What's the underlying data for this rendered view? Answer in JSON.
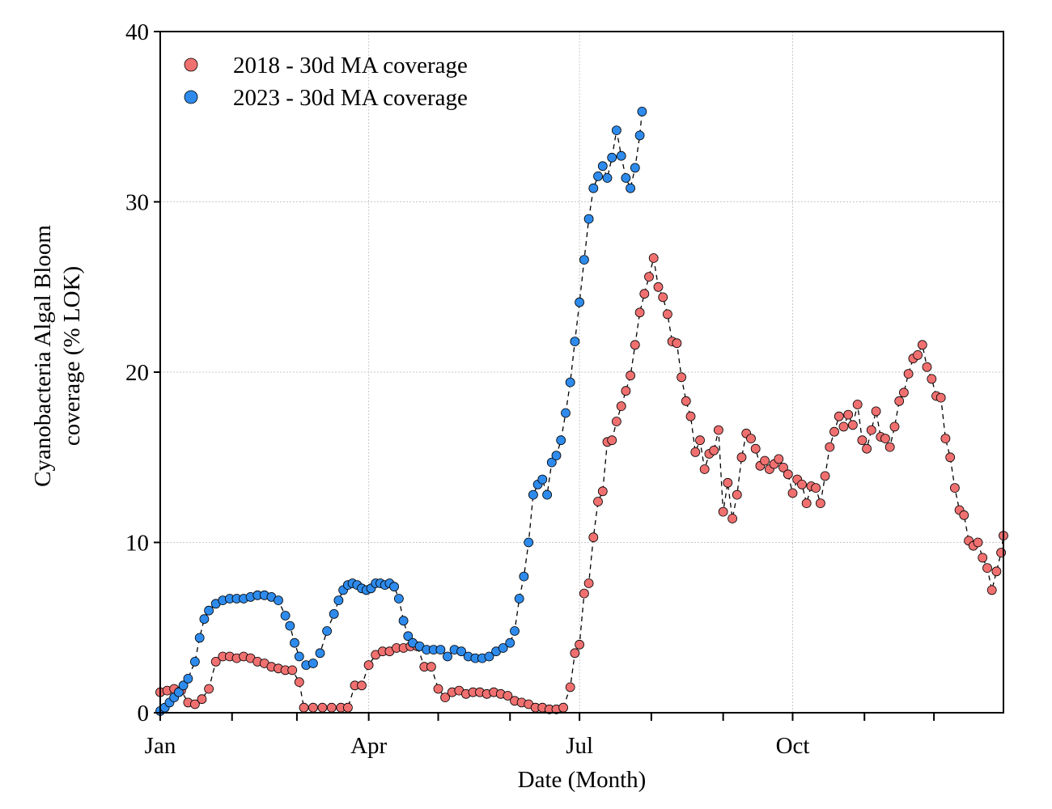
{
  "chart_data": {
    "type": "scatter",
    "title": "",
    "xlabel": "Date (Month)",
    "ylabel": "Cyanobacteria Algal Bloom\ncoverage (% LOK)",
    "ylim": [
      0,
      40
    ],
    "xlim": [
      "Jan 1",
      "Dec 31"
    ],
    "yticks": [
      "0",
      "10",
      "20",
      "30",
      "40"
    ],
    "xticks": [
      "Jan",
      "Apr",
      "Jul",
      "Oct"
    ],
    "grid": true,
    "legend_position": "top-left",
    "series": [
      {
        "name": "2018 - 30d MA coverage",
        "color": "#f07070",
        "points": [
          [
            "Jan 1",
            1.2
          ],
          [
            "Jan 4",
            1.3
          ],
          [
            "Jan 7",
            1.4
          ],
          [
            "Jan 10",
            1.3
          ],
          [
            "Jan 13",
            0.6
          ],
          [
            "Jan 16",
            0.5
          ],
          [
            "Jan 19",
            0.8
          ],
          [
            "Jan 22",
            1.4
          ],
          [
            "Jan 25",
            3.0
          ],
          [
            "Jan 28",
            3.3
          ],
          [
            "Jan 31",
            3.3
          ],
          [
            "Feb 3",
            3.2
          ],
          [
            "Feb 6",
            3.3
          ],
          [
            "Feb 9",
            3.2
          ],
          [
            "Feb 12",
            3.0
          ],
          [
            "Feb 15",
            2.9
          ],
          [
            "Feb 18",
            2.7
          ],
          [
            "Feb 21",
            2.6
          ],
          [
            "Feb 24",
            2.5
          ],
          [
            "Feb 27",
            2.5
          ],
          [
            "Mar 2",
            1.8
          ],
          [
            "Mar 4",
            0.3
          ],
          [
            "Mar 8",
            0.3
          ],
          [
            "Mar 12",
            0.3
          ],
          [
            "Mar 16",
            0.3
          ],
          [
            "Mar 20",
            0.3
          ],
          [
            "Mar 23",
            0.3
          ],
          [
            "Mar 26",
            1.6
          ],
          [
            "Mar 29",
            1.6
          ],
          [
            "Apr 1",
            2.8
          ],
          [
            "Apr 4",
            3.4
          ],
          [
            "Apr 7",
            3.6
          ],
          [
            "Apr 10",
            3.6
          ],
          [
            "Apr 13",
            3.8
          ],
          [
            "Apr 16",
            3.8
          ],
          [
            "Apr 19",
            3.9
          ],
          [
            "Apr 22",
            3.9
          ],
          [
            "Apr 25",
            2.7
          ],
          [
            "Apr 28",
            2.7
          ],
          [
            "May 1",
            1.4
          ],
          [
            "May 4",
            0.9
          ],
          [
            "May 7",
            1.2
          ],
          [
            "May 10",
            1.3
          ],
          [
            "May 13",
            1.1
          ],
          [
            "May 16",
            1.2
          ],
          [
            "May 19",
            1.2
          ],
          [
            "May 22",
            1.1
          ],
          [
            "May 25",
            1.2
          ],
          [
            "May 28",
            1.1
          ],
          [
            "May 31",
            1.0
          ],
          [
            "Jun 3",
            0.7
          ],
          [
            "Jun 6",
            0.6
          ],
          [
            "Jun 9",
            0.5
          ],
          [
            "Jun 12",
            0.3
          ],
          [
            "Jun 15",
            0.3
          ],
          [
            "Jun 18",
            0.2
          ],
          [
            "Jun 21",
            0.2
          ],
          [
            "Jun 24",
            0.3
          ],
          [
            "Jun 27",
            1.5
          ],
          [
            "Jun 29",
            3.5
          ],
          [
            "Jul 1",
            4.0
          ],
          [
            "Jul 3",
            7.0
          ],
          [
            "Jul 5",
            7.6
          ],
          [
            "Jul 7",
            10.3
          ],
          [
            "Jul 9",
            12.4
          ],
          [
            "Jul 11",
            13.0
          ],
          [
            "Jul 13",
            15.9
          ],
          [
            "Jul 15",
            16.0
          ],
          [
            "Jul 17",
            17.1
          ],
          [
            "Jul 19",
            18.0
          ],
          [
            "Jul 21",
            18.9
          ],
          [
            "Jul 23",
            19.8
          ],
          [
            "Jul 25",
            21.6
          ],
          [
            "Jul 27",
            23.5
          ],
          [
            "Jul 29",
            24.6
          ],
          [
            "Jul 31",
            25.6
          ],
          [
            "Aug 2",
            26.7
          ],
          [
            "Aug 4",
            25.0
          ],
          [
            "Aug 6",
            24.4
          ],
          [
            "Aug 8",
            23.4
          ],
          [
            "Aug 10",
            21.8
          ],
          [
            "Aug 12",
            21.7
          ],
          [
            "Aug 14",
            19.7
          ],
          [
            "Aug 16",
            18.3
          ],
          [
            "Aug 18",
            17.4
          ],
          [
            "Aug 20",
            15.3
          ],
          [
            "Aug 22",
            16.0
          ],
          [
            "Aug 24",
            14.3
          ],
          [
            "Aug 26",
            15.2
          ],
          [
            "Aug 28",
            15.4
          ],
          [
            "Aug 30",
            16.6
          ],
          [
            "Sep 1",
            11.8
          ],
          [
            "Sep 3",
            13.5
          ],
          [
            "Sep 5",
            11.4
          ],
          [
            "Sep 7",
            12.8
          ],
          [
            "Sep 9",
            15.0
          ],
          [
            "Sep 11",
            16.4
          ],
          [
            "Sep 13",
            16.1
          ],
          [
            "Sep 15",
            15.5
          ],
          [
            "Sep 17",
            14.5
          ],
          [
            "Sep 19",
            14.8
          ],
          [
            "Sep 21",
            14.3
          ],
          [
            "Sep 23",
            14.6
          ],
          [
            "Sep 25",
            14.9
          ],
          [
            "Sep 27",
            14.4
          ],
          [
            "Sep 29",
            14.0
          ],
          [
            "Oct 1",
            12.9
          ],
          [
            "Oct 3",
            13.7
          ],
          [
            "Oct 5",
            13.4
          ],
          [
            "Oct 7",
            12.3
          ],
          [
            "Oct 9",
            13.3
          ],
          [
            "Oct 11",
            13.2
          ],
          [
            "Oct 13",
            12.3
          ],
          [
            "Oct 15",
            13.9
          ],
          [
            "Oct 17",
            15.6
          ],
          [
            "Oct 19",
            16.5
          ],
          [
            "Oct 21",
            17.4
          ],
          [
            "Oct 23",
            16.8
          ],
          [
            "Oct 25",
            17.5
          ],
          [
            "Oct 27",
            16.9
          ],
          [
            "Oct 29",
            18.1
          ],
          [
            "Oct 31",
            16.0
          ],
          [
            "Nov 2",
            15.5
          ],
          [
            "Nov 4",
            16.6
          ],
          [
            "Nov 6",
            17.7
          ],
          [
            "Nov 8",
            16.2
          ],
          [
            "Nov 10",
            16.1
          ],
          [
            "Nov 12",
            15.6
          ],
          [
            "Nov 14",
            16.8
          ],
          [
            "Nov 16",
            18.3
          ],
          [
            "Nov 18",
            18.8
          ],
          [
            "Nov 20",
            19.9
          ],
          [
            "Nov 22",
            20.8
          ],
          [
            "Nov 24",
            21.0
          ],
          [
            "Nov 26",
            21.6
          ],
          [
            "Nov 28",
            20.3
          ],
          [
            "Nov 30",
            19.6
          ],
          [
            "Dec 2",
            18.6
          ],
          [
            "Dec 4",
            18.5
          ],
          [
            "Dec 6",
            16.1
          ],
          [
            "Dec 8",
            15.0
          ],
          [
            "Dec 10",
            13.2
          ],
          [
            "Dec 12",
            11.9
          ],
          [
            "Dec 14",
            11.6
          ],
          [
            "Dec 16",
            10.1
          ],
          [
            "Dec 18",
            9.8
          ],
          [
            "Dec 20",
            10.0
          ],
          [
            "Dec 22",
            9.1
          ],
          [
            "Dec 24",
            8.5
          ],
          [
            "Dec 26",
            7.2
          ],
          [
            "Dec 28",
            8.3
          ],
          [
            "Dec 30",
            9.4
          ],
          [
            "Dec 31",
            10.4
          ]
        ]
      },
      {
        "name": "2023 - 30d MA coverage",
        "color": "#2e8bec",
        "points": [
          [
            "Jan 1",
            0.1
          ],
          [
            "Jan 3",
            0.3
          ],
          [
            "Jan 5",
            0.6
          ],
          [
            "Jan 7",
            0.9
          ],
          [
            "Jan 9",
            1.2
          ],
          [
            "Jan 11",
            1.6
          ],
          [
            "Jan 13",
            2.0
          ],
          [
            "Jan 16",
            3.0
          ],
          [
            "Jan 18",
            4.4
          ],
          [
            "Jan 20",
            5.5
          ],
          [
            "Jan 22",
            6.0
          ],
          [
            "Jan 25",
            6.4
          ],
          [
            "Jan 28",
            6.6
          ],
          [
            "Jan 31",
            6.7
          ],
          [
            "Feb 3",
            6.7
          ],
          [
            "Feb 6",
            6.7
          ],
          [
            "Feb 9",
            6.8
          ],
          [
            "Feb 12",
            6.9
          ],
          [
            "Feb 15",
            6.9
          ],
          [
            "Feb 18",
            6.8
          ],
          [
            "Feb 21",
            6.6
          ],
          [
            "Feb 24",
            5.7
          ],
          [
            "Feb 26",
            5.1
          ],
          [
            "Feb 28",
            4.1
          ],
          [
            "Mar 2",
            3.3
          ],
          [
            "Mar 5",
            2.8
          ],
          [
            "Mar 8",
            2.9
          ],
          [
            "Mar 11",
            3.5
          ],
          [
            "Mar 14",
            4.8
          ],
          [
            "Mar 17",
            5.8
          ],
          [
            "Mar 19",
            6.6
          ],
          [
            "Mar 21",
            7.2
          ],
          [
            "Mar 23",
            7.5
          ],
          [
            "Mar 25",
            7.6
          ],
          [
            "Mar 27",
            7.5
          ],
          [
            "Mar 29",
            7.3
          ],
          [
            "Mar 31",
            7.2
          ],
          [
            "Apr 2",
            7.3
          ],
          [
            "Apr 4",
            7.6
          ],
          [
            "Apr 6",
            7.6
          ],
          [
            "Apr 8",
            7.5
          ],
          [
            "Apr 10",
            7.6
          ],
          [
            "Apr 12",
            7.4
          ],
          [
            "Apr 14",
            6.7
          ],
          [
            "Apr 16",
            5.4
          ],
          [
            "Apr 18",
            4.5
          ],
          [
            "Apr 20",
            4.1
          ],
          [
            "Apr 23",
            3.9
          ],
          [
            "Apr 26",
            3.7
          ],
          [
            "Apr 29",
            3.7
          ],
          [
            "May 2",
            3.7
          ],
          [
            "May 5",
            3.3
          ],
          [
            "May 8",
            3.7
          ],
          [
            "May 11",
            3.6
          ],
          [
            "May 14",
            3.3
          ],
          [
            "May 17",
            3.2
          ],
          [
            "May 20",
            3.2
          ],
          [
            "May 23",
            3.3
          ],
          [
            "May 26",
            3.6
          ],
          [
            "May 29",
            3.8
          ],
          [
            "Jun 1",
            4.1
          ],
          [
            "Jun 3",
            4.8
          ],
          [
            "Jun 5",
            6.7
          ],
          [
            "Jun 7",
            8.0
          ],
          [
            "Jun 9",
            10.0
          ],
          [
            "Jun 11",
            12.8
          ],
          [
            "Jun 13",
            13.4
          ],
          [
            "Jun 15",
            13.7
          ],
          [
            "Jun 17",
            12.8
          ],
          [
            "Jun 19",
            14.7
          ],
          [
            "Jun 21",
            15.1
          ],
          [
            "Jun 23",
            16.0
          ],
          [
            "Jun 25",
            17.6
          ],
          [
            "Jun 27",
            19.4
          ],
          [
            "Jun 29",
            21.8
          ],
          [
            "Jul 1",
            24.1
          ],
          [
            "Jul 3",
            26.6
          ],
          [
            "Jul 5",
            29.0
          ],
          [
            "Jul 7",
            30.8
          ],
          [
            "Jul 9",
            31.5
          ],
          [
            "Jul 11",
            32.1
          ],
          [
            "Jul 13",
            31.4
          ],
          [
            "Jul 15",
            32.6
          ],
          [
            "Jul 17",
            34.2
          ],
          [
            "Jul 19",
            32.7
          ],
          [
            "Jul 21",
            31.4
          ],
          [
            "Jul 23",
            30.8
          ],
          [
            "Jul 25",
            32.0
          ],
          [
            "Jul 27",
            33.9
          ],
          [
            "Jul 28",
            35.3
          ]
        ]
      }
    ]
  }
}
